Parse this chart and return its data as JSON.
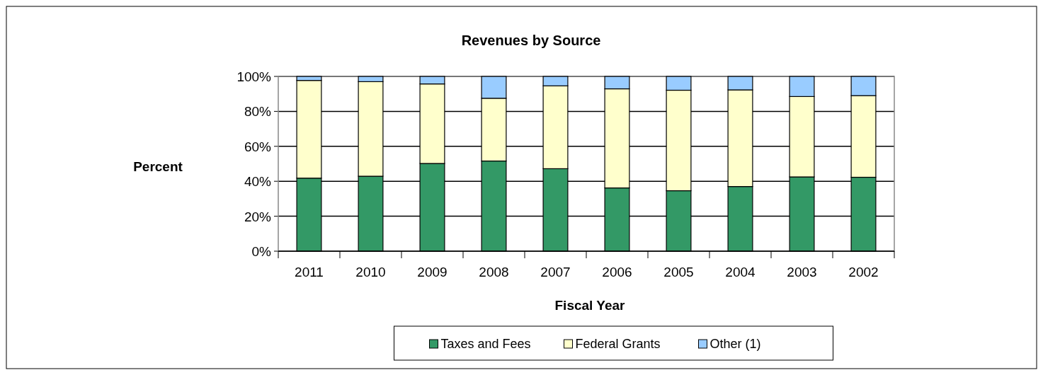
{
  "chart_data": {
    "type": "bar",
    "title": "Revenues  by Source",
    "xlabel": "Fiscal Year",
    "ylabel": "Percent",
    "stacked": true,
    "categories": [
      "2011",
      "2010",
      "2009",
      "2008",
      "2007",
      "2006",
      "2005",
      "2004",
      "2003",
      "2002"
    ],
    "series": [
      {
        "name": "Taxes and Fees",
        "color": "#339966",
        "values": [
          41.8,
          42.9,
          50.2,
          51.6,
          47.2,
          36.2,
          34.6,
          37.0,
          42.5,
          42.3
        ]
      },
      {
        "name": "Federal Grants",
        "color": "#ffffcc",
        "values": [
          55.9,
          54.1,
          45.5,
          35.9,
          47.4,
          56.7,
          57.5,
          55.3,
          46.0,
          46.7
        ]
      },
      {
        "name": "Other (1)",
        "color": "#99ccff",
        "values": [
          2.3,
          3.0,
          4.3,
          12.5,
          5.4,
          7.1,
          7.9,
          7.7,
          11.5,
          11.0
        ]
      }
    ],
    "ylim": [
      0,
      100
    ],
    "yticks": [
      {
        "value": 0,
        "label": "0%"
      },
      {
        "value": 20,
        "label": "20%"
      },
      {
        "value": 40,
        "label": "40%"
      },
      {
        "value": 60,
        "label": "60%"
      },
      {
        "value": 80,
        "label": "80%"
      },
      {
        "value": 100,
        "label": "100%"
      }
    ],
    "grid": "y",
    "legend": "bottom"
  }
}
